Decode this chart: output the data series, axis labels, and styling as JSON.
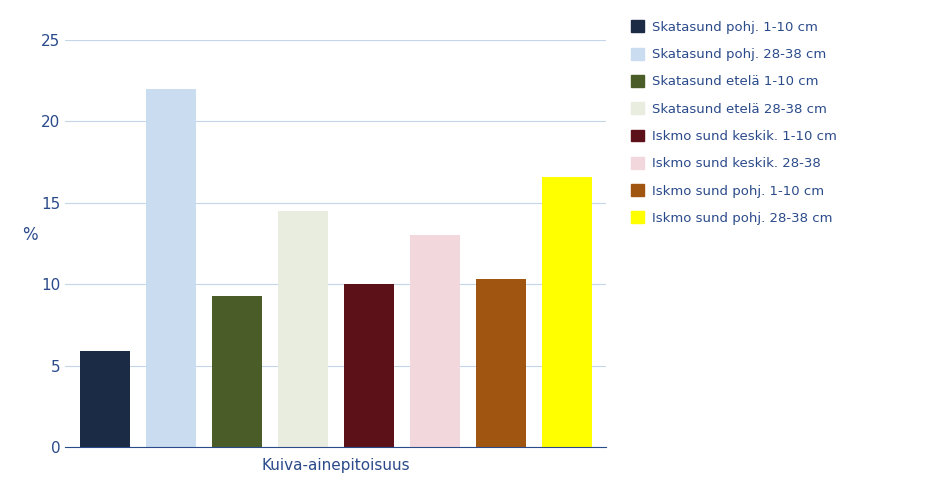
{
  "values": [
    5.9,
    22.0,
    9.3,
    14.5,
    10.0,
    13.0,
    10.3,
    16.6
  ],
  "colors": [
    "#1b2a45",
    "#c9dcf0",
    "#4a5c28",
    "#e8ede0",
    "#5c1018",
    "#f2d8dc",
    "#a05510",
    "#ffff00"
  ],
  "legend_labels": [
    "Skatasund pohj. 1-10 cm",
    "Skatasund pohj. 28-38 cm",
    "Skatasund etelä 1-10 cm",
    "Skatasund etelä 28-38 cm",
    "Iskmo sund keskik. 1-10 cm",
    "Iskmo sund keskik. 28-38",
    "Iskmo sund pohj. 1-10 cm",
    "Iskmo sund pohj. 28-38 cm"
  ],
  "xlabel": "Kuiva-ainepitoisuus",
  "ylabel": "%",
  "ylim": [
    0,
    25
  ],
  "yticks": [
    0,
    5,
    10,
    15,
    20,
    25
  ],
  "grid_color": "#c5d5e8",
  "legend_text_color": "#2a4a8a",
  "tick_color": "#2a4a8a",
  "xlabel_color": "#2a4a8a",
  "ylabel_color": "#2a4a8a",
  "background_color": "#ffffff",
  "bar_gap": 0.15
}
